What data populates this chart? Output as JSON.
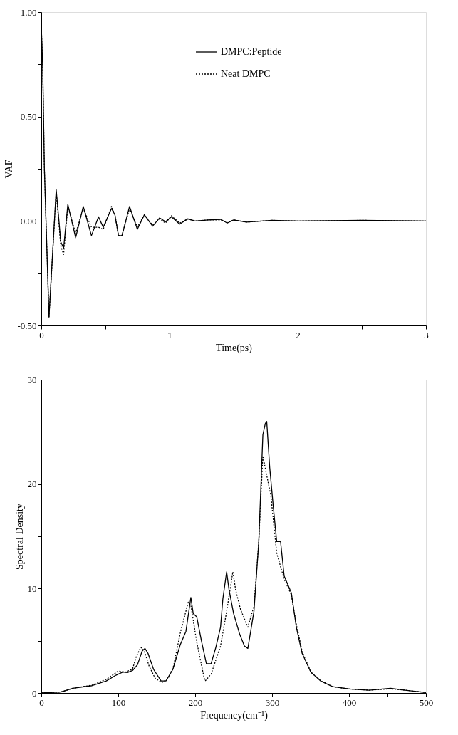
{
  "chart_data": [
    {
      "type": "line",
      "xlabel": "Time(ps)",
      "ylabel": "VAF",
      "xlim": [
        0,
        3
      ],
      "ylim": [
        -0.5,
        1.0
      ],
      "xticks": [
        0,
        {
          "value": 0.5,
          "label": null
        },
        1,
        {
          "value": 1.5,
          "label": null
        },
        2,
        {
          "value": 2.5,
          "label": null
        },
        3
      ],
      "yticks": [
        {
          "value": -0.5,
          "label": "-0.50"
        },
        {
          "value": -0.25,
          "label": null
        },
        {
          "value": 0,
          "label": "0.00"
        },
        {
          "value": 0.25,
          "label": null
        },
        {
          "value": 0.5,
          "label": "0.50"
        },
        {
          "value": 0.75,
          "label": null
        },
        {
          "value": 1.0,
          "label": "1.00"
        }
      ],
      "grid": false,
      "legend": "top",
      "series": [
        {
          "name": "DMPC:Peptide",
          "color": "#000000",
          "line_style": "solid",
          "x": [
            0,
            0.011,
            0.024,
            0.06,
            0.116,
            0.152,
            0.174,
            0.207,
            0.268,
            0.327,
            0.391,
            0.446,
            0.483,
            0.547,
            0.574,
            0.602,
            0.629,
            0.688,
            0.749,
            0.804,
            0.868,
            0.923,
            0.969,
            1.015,
            1.079,
            1.143,
            1.2,
            1.3,
            1.4,
            1.45,
            1.5,
            1.6,
            1.8,
            2.0,
            2.5,
            3.0
          ],
          "values": [
            0.93,
            0.74,
            0.25,
            -0.46,
            0.15,
            -0.1,
            -0.13,
            0.08,
            -0.08,
            0.07,
            -0.07,
            0.02,
            -0.03,
            0.06,
            0.03,
            -0.07,
            -0.07,
            0.07,
            -0.04,
            0.03,
            -0.025,
            0.015,
            -0.003,
            0.02,
            -0.015,
            0.01,
            0.0,
            0.005,
            0.008,
            -0.01,
            0.005,
            -0.005,
            0.003,
            0.0,
            0.003,
            0.0
          ]
        },
        {
          "name": "Neat DMPC",
          "color": "#000000",
          "line_style": "dotted",
          "x": [
            0,
            0.011,
            0.024,
            0.06,
            0.116,
            0.152,
            0.174,
            0.207,
            0.268,
            0.327,
            0.391,
            0.446,
            0.483,
            0.547,
            0.574,
            0.602,
            0.629,
            0.688,
            0.749,
            0.804,
            0.868,
            0.923,
            0.969,
            1.015,
            1.079,
            1.143,
            1.2,
            1.3,
            1.4,
            1.45,
            1.5,
            1.6,
            1.8,
            2.0,
            2.5,
            3.0
          ],
          "values": [
            0.93,
            0.74,
            0.25,
            -0.46,
            0.14,
            -0.12,
            -0.16,
            0.07,
            -0.06,
            0.06,
            -0.03,
            -0.03,
            -0.04,
            0.07,
            0.03,
            -0.07,
            -0.07,
            0.06,
            -0.03,
            0.03,
            -0.02,
            0.01,
            -0.01,
            0.025,
            -0.01,
            0.01,
            0.0,
            0.005,
            0.005,
            -0.008,
            0.005,
            -0.005,
            0.003,
            0.0,
            0.003,
            0.0
          ]
        }
      ]
    },
    {
      "type": "line",
      "xlabel": "Frequency(cm⁻¹)",
      "ylabel": "Spectral Density",
      "xlim": [
        0,
        500
      ],
      "ylim": [
        0,
        30
      ],
      "xticks": [
        0,
        {
          "value": 50,
          "label": null
        },
        100,
        {
          "value": 150,
          "label": null
        },
        200,
        {
          "value": 250,
          "label": null
        },
        300,
        {
          "value": 350,
          "label": null
        },
        400,
        {
          "value": 450,
          "label": null
        },
        500
      ],
      "yticks": [
        0,
        {
          "value": 5,
          "label": null
        },
        10,
        {
          "value": 15,
          "label": null
        },
        20,
        {
          "value": 25,
          "label": null
        },
        30
      ],
      "grid": false,
      "legend": "top left",
      "series": [
        {
          "name": "DMPC:Peptide",
          "color": "#000000",
          "line_style": "solid",
          "x": [
            0,
            25.7,
            41,
            66,
            84.5,
            97,
            106,
            112,
            118.6,
            125,
            131,
            134.7,
            138.7,
            146,
            155.7,
            162,
            171,
            180.5,
            188,
            194.4,
            197.5,
            202,
            208.4,
            214.6,
            220.7,
            227,
            233,
            236,
            240.9,
            244,
            250,
            258,
            264,
            268.5,
            276.4,
            282.7,
            288,
            291.2,
            293,
            296.9,
            301.6,
            306,
            311,
            315.7,
            325,
            331.5,
            339,
            350.4,
            363,
            378.7,
            400.8,
            426,
            454,
            473,
            500
          ],
          "values": [
            0,
            0.1,
            0.45,
            0.7,
            1.15,
            1.7,
            2.0,
            1.95,
            2.15,
            2.7,
            4.0,
            4.27,
            3.8,
            2.25,
            1.15,
            1.15,
            2.25,
            4.6,
            5.9,
            9.15,
            7.6,
            7.3,
            4.9,
            2.8,
            2.8,
            4.4,
            6.3,
            9.0,
            11.6,
            9.9,
            7.6,
            5.6,
            4.5,
            4.27,
            7.8,
            14.5,
            24.7,
            25.8,
            26.0,
            21.6,
            17.8,
            14.5,
            14.5,
            11.2,
            9.6,
            6.3,
            3.8,
            2.0,
            1.15,
            0.6,
            0.38,
            0.27,
            0.45,
            0.27,
            0.04
          ]
        },
        {
          "name": "Neat DMPC",
          "color": "#000000",
          "line_style": "dotted",
          "x": [
            0,
            25.7,
            41,
            66,
            84.5,
            100,
            110,
            118.6,
            124,
            129.4,
            134,
            140,
            148,
            157,
            165,
            172,
            180.5,
            191,
            194.4,
            202,
            211.5,
            213,
            220.7,
            233,
            240.9,
            249,
            252.8,
            259,
            268.5,
            276.4,
            282.7,
            288,
            292,
            298.4,
            306,
            315.7,
            325,
            331.5,
            339,
            350.4,
            363,
            378.7,
            400.8,
            426,
            454,
            473,
            500
          ],
          "values": [
            0,
            0.1,
            0.45,
            0.75,
            1.3,
            2.1,
            2.0,
            2.3,
            3.6,
            4.38,
            4.0,
            2.6,
            1.4,
            1.0,
            1.4,
            2.6,
            5.7,
            8.7,
            8.4,
            4.9,
            1.5,
            1.15,
            1.8,
            4.5,
            7.8,
            11.6,
            9.8,
            8.0,
            6.3,
            8.3,
            14.5,
            22.7,
            21.2,
            18.9,
            13.4,
            10.9,
            9.4,
            6.6,
            4.0,
            2.0,
            1.2,
            0.6,
            0.38,
            0.27,
            0.4,
            0.27,
            0.04
          ]
        }
      ]
    }
  ]
}
